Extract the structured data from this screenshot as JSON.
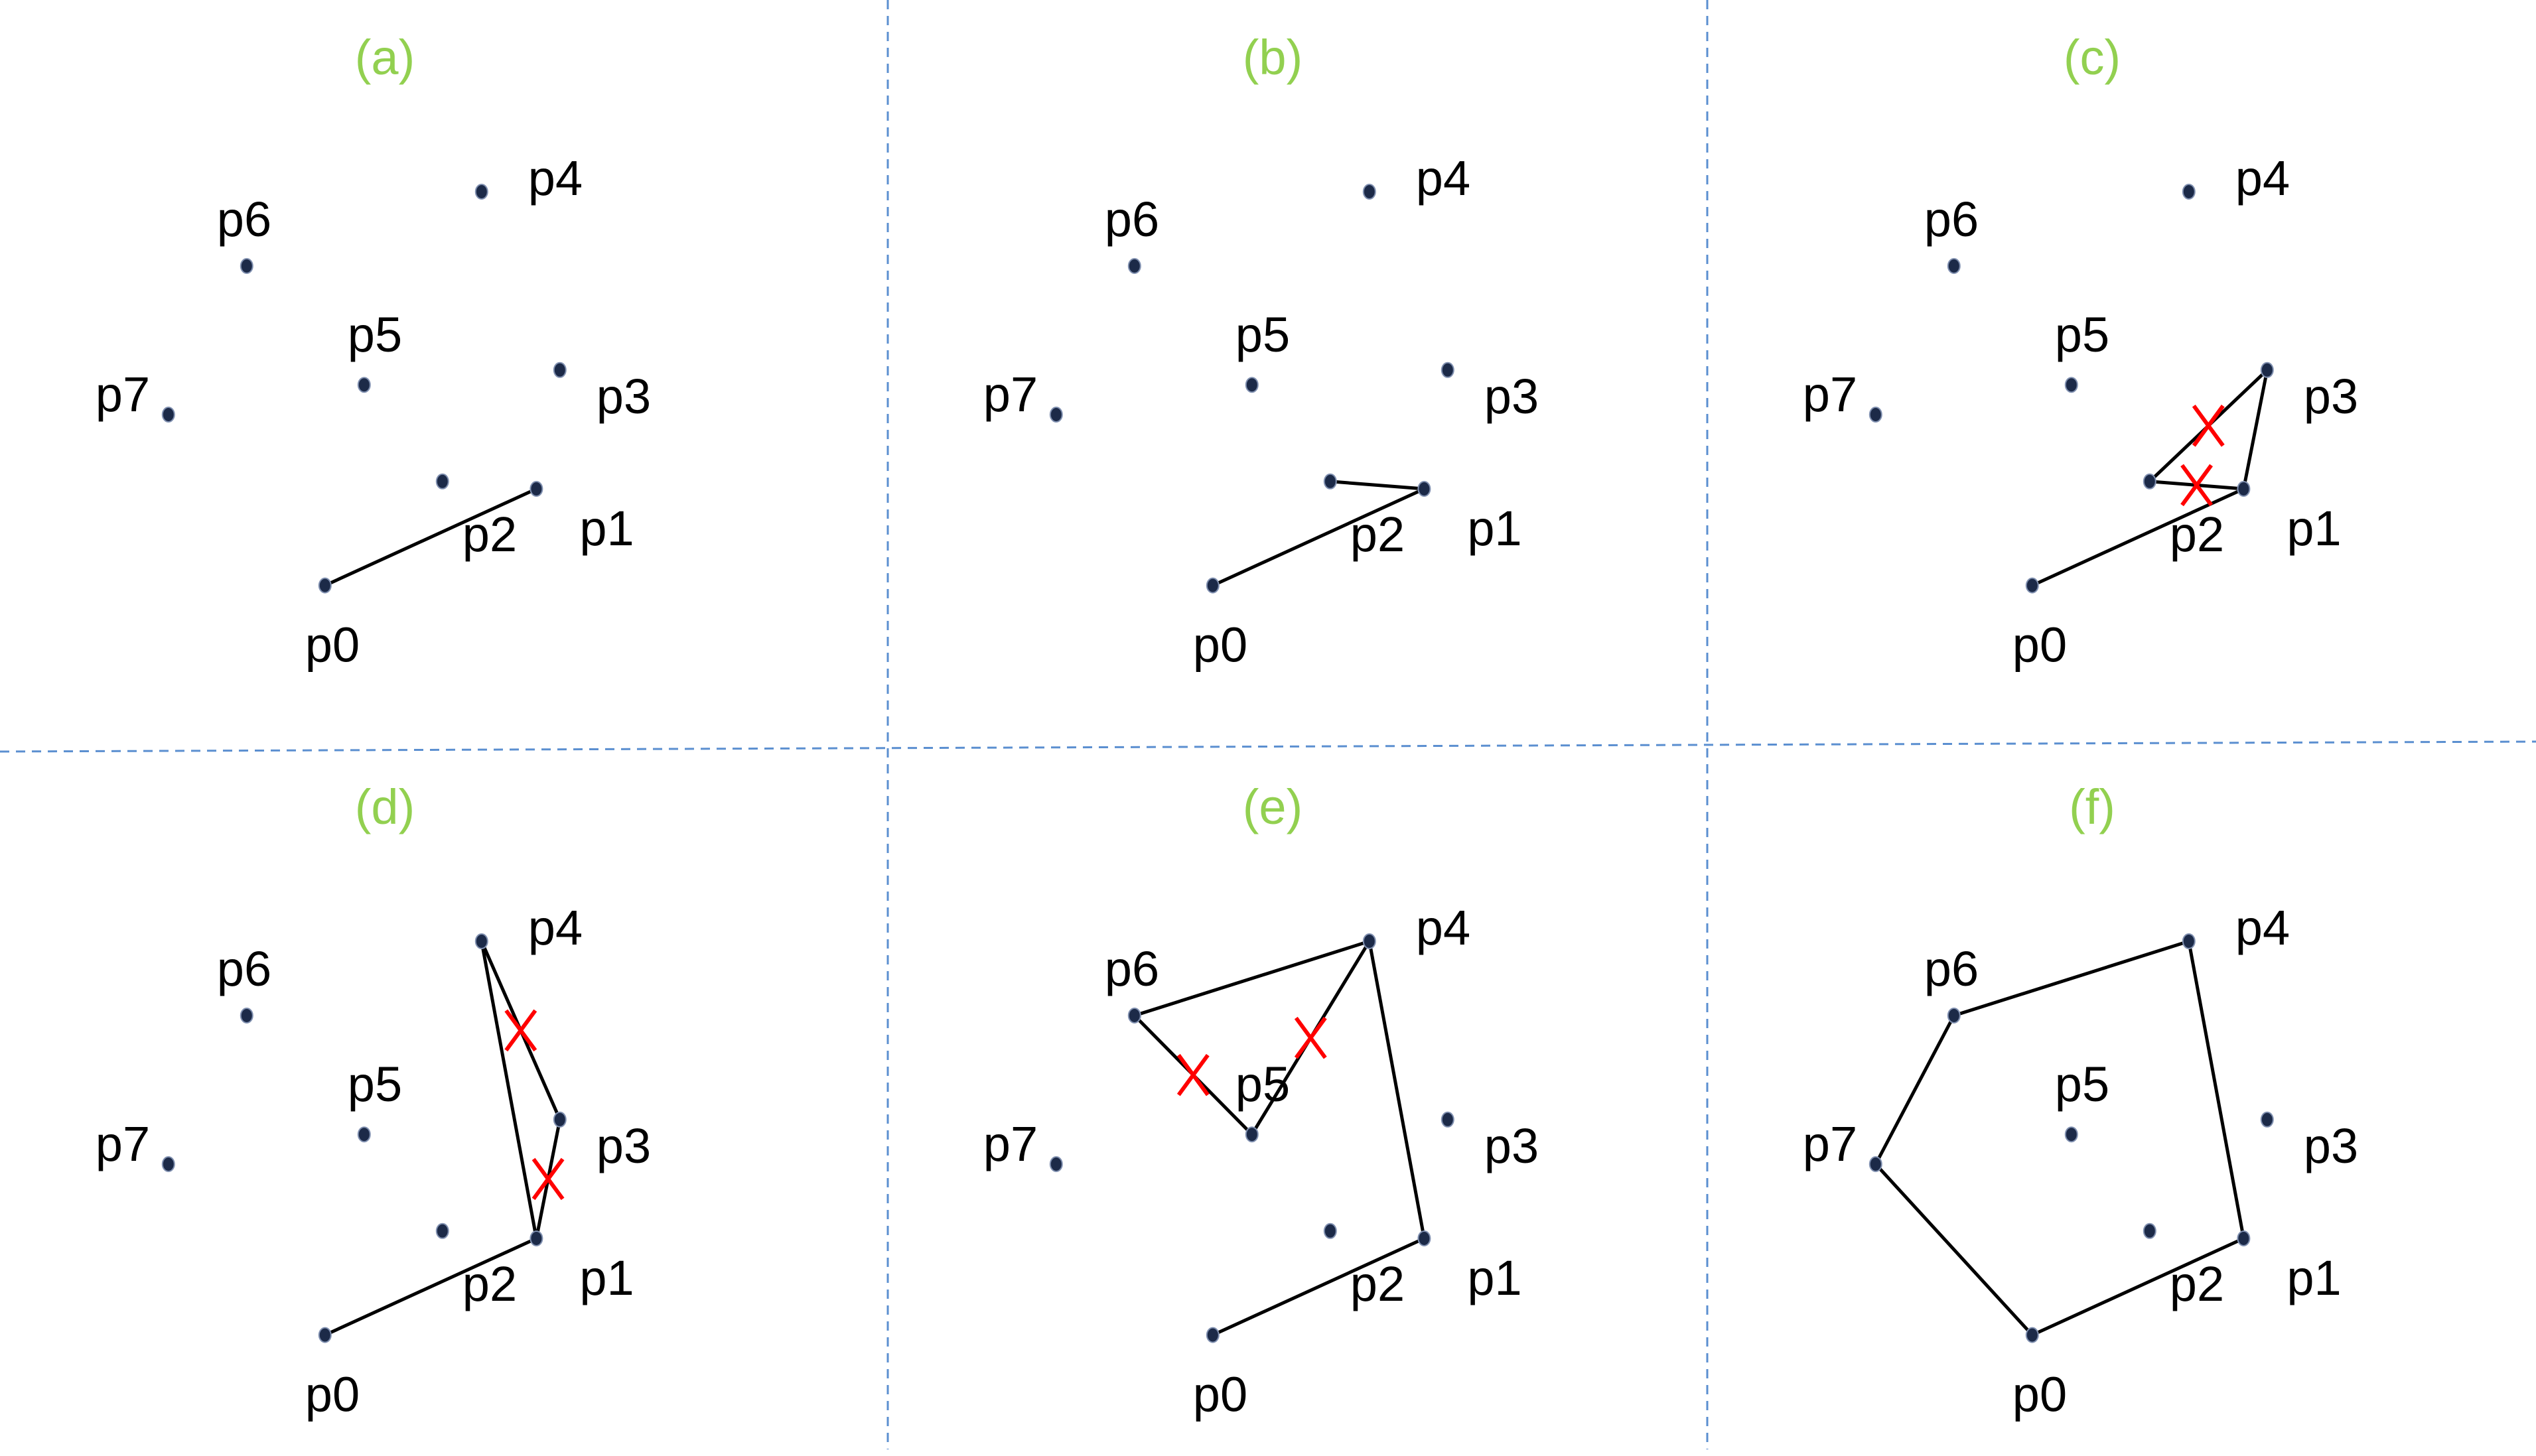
{
  "colors": {
    "title": "#92d050",
    "divider": "#5b8fd0",
    "edge": "#000000",
    "point": "#1c2a48",
    "mark": "#ff0000"
  },
  "panels": [
    {
      "id": "a",
      "title": "(a)",
      "points": [
        {
          "label": "p0",
          "x": 0.1,
          "y": 0.2
        },
        {
          "label": "p1",
          "x": 2.8,
          "y": 1.5
        },
        {
          "label": "p2",
          "x": 1.6,
          "y": 1.6
        },
        {
          "label": "p3",
          "x": 3.1,
          "y": 3.1
        },
        {
          "label": "p4",
          "x": 2.1,
          "y": 5.5
        },
        {
          "label": "p5",
          "x": 0.6,
          "y": 2.9
        },
        {
          "label": "p6",
          "x": -0.9,
          "y": 4.5
        },
        {
          "label": "p7",
          "x": -1.9,
          "y": 2.5
        }
      ],
      "edges": [
        [
          "p0",
          "p1"
        ]
      ],
      "marks": []
    },
    {
      "id": "b",
      "title": "(b)",
      "points": [
        {
          "label": "p0",
          "x": 0.1,
          "y": 0.2
        },
        {
          "label": "p1",
          "x": 2.8,
          "y": 1.5
        },
        {
          "label": "p2",
          "x": 1.6,
          "y": 1.6
        },
        {
          "label": "p3",
          "x": 3.1,
          "y": 3.1
        },
        {
          "label": "p4",
          "x": 2.1,
          "y": 5.5
        },
        {
          "label": "p5",
          "x": 0.6,
          "y": 2.9
        },
        {
          "label": "p6",
          "x": -0.9,
          "y": 4.5
        },
        {
          "label": "p7",
          "x": -1.9,
          "y": 2.5
        }
      ],
      "edges": [
        [
          "p0",
          "p1"
        ],
        [
          "p1",
          "p2"
        ]
      ],
      "marks": []
    },
    {
      "id": "c",
      "title": "(c)",
      "points": [
        {
          "label": "p0",
          "x": 0.1,
          "y": 0.2
        },
        {
          "label": "p1",
          "x": 2.8,
          "y": 1.5
        },
        {
          "label": "p2",
          "x": 1.6,
          "y": 1.6
        },
        {
          "label": "p3",
          "x": 3.1,
          "y": 3.1
        },
        {
          "label": "p4",
          "x": 2.1,
          "y": 5.5
        },
        {
          "label": "p5",
          "x": 0.6,
          "y": 2.9
        },
        {
          "label": "p6",
          "x": -0.9,
          "y": 4.5
        },
        {
          "label": "p7",
          "x": -1.9,
          "y": 2.5
        }
      ],
      "edges": [
        [
          "p0",
          "p1"
        ],
        [
          "p1",
          "p2"
        ],
        [
          "p2",
          "p3"
        ],
        [
          "p3",
          "p1"
        ]
      ],
      "marks": [
        [
          "p2",
          "p3"
        ],
        [
          "p1",
          "p2"
        ]
      ]
    },
    {
      "id": "d",
      "title": "(d)",
      "points": [
        {
          "label": "p0",
          "x": 0.1,
          "y": 0.2
        },
        {
          "label": "p1",
          "x": 2.8,
          "y": 1.5
        },
        {
          "label": "p2",
          "x": 1.6,
          "y": 1.6
        },
        {
          "label": "p3",
          "x": 3.1,
          "y": 3.1
        },
        {
          "label": "p4",
          "x": 2.1,
          "y": 5.5
        },
        {
          "label": "p5",
          "x": 0.6,
          "y": 2.9
        },
        {
          "label": "p6",
          "x": -0.9,
          "y": 4.5
        },
        {
          "label": "p7",
          "x": -1.9,
          "y": 2.5
        }
      ],
      "edges": [
        [
          "p0",
          "p1"
        ],
        [
          "p1",
          "p3"
        ],
        [
          "p3",
          "p4"
        ],
        [
          "p4",
          "p1"
        ]
      ],
      "marks": [
        [
          "p3",
          "p4"
        ],
        [
          "p1",
          "p3"
        ]
      ]
    },
    {
      "id": "e",
      "title": "(e)",
      "points": [
        {
          "label": "p0",
          "x": 0.1,
          "y": 0.2
        },
        {
          "label": "p1",
          "x": 2.8,
          "y": 1.5
        },
        {
          "label": "p2",
          "x": 1.6,
          "y": 1.6
        },
        {
          "label": "p3",
          "x": 3.1,
          "y": 3.1
        },
        {
          "label": "p4",
          "x": 2.1,
          "y": 5.5
        },
        {
          "label": "p5",
          "x": 0.6,
          "y": 2.9
        },
        {
          "label": "p6",
          "x": -0.9,
          "y": 4.5
        },
        {
          "label": "p7",
          "x": -1.9,
          "y": 2.5
        }
      ],
      "edges": [
        [
          "p0",
          "p1"
        ],
        [
          "p1",
          "p4"
        ],
        [
          "p4",
          "p6"
        ],
        [
          "p6",
          "p5"
        ],
        [
          "p5",
          "p4"
        ]
      ],
      "marks": [
        [
          "p6",
          "p5"
        ],
        [
          "p5",
          "p4"
        ]
      ]
    },
    {
      "id": "f",
      "title": "(f)",
      "points": [
        {
          "label": "p0",
          "x": 0.1,
          "y": 0.2
        },
        {
          "label": "p1",
          "x": 2.8,
          "y": 1.5
        },
        {
          "label": "p2",
          "x": 1.6,
          "y": 1.6
        },
        {
          "label": "p3",
          "x": 3.1,
          "y": 3.1
        },
        {
          "label": "p4",
          "x": 2.1,
          "y": 5.5
        },
        {
          "label": "p5",
          "x": 0.6,
          "y": 2.9
        },
        {
          "label": "p6",
          "x": -0.9,
          "y": 4.5
        },
        {
          "label": "p7",
          "x": -1.9,
          "y": 2.5
        }
      ],
      "edges": [
        [
          "p0",
          "p1"
        ],
        [
          "p1",
          "p4"
        ],
        [
          "p4",
          "p6"
        ],
        [
          "p6",
          "p7"
        ],
        [
          "p7",
          "p0"
        ]
      ],
      "marks": []
    }
  ]
}
